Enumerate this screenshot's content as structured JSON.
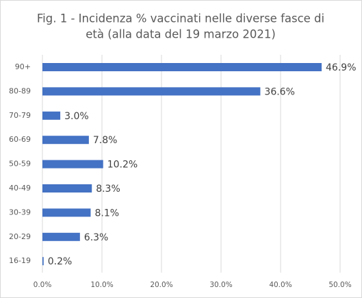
{
  "chart_data": {
    "type": "bar",
    "orientation": "horizontal",
    "title": [
      "Fig. 1 - Incidenza % vaccinati nelle diverse fasce di",
      "età (alla data del 19 marzo 2021)"
    ],
    "categories": [
      "90+",
      "80-89",
      "70-79",
      "60-69",
      "50-59",
      "40-49",
      "30-39",
      "20-29",
      "16-19"
    ],
    "values": [
      46.9,
      36.6,
      3.0,
      7.8,
      10.2,
      8.3,
      8.1,
      6.3,
      0.2
    ],
    "value_labels": [
      "46.9%",
      "36.6%",
      "3.0%",
      "7.8%",
      "10.2%",
      "8.3%",
      "8.1%",
      "6.3%",
      "0.2%"
    ],
    "color": "#4472c4",
    "xlim": [
      0,
      50
    ],
    "xticks": [
      {
        "value": 0,
        "label": "0.0%"
      },
      {
        "value": 10,
        "label": "10.0%"
      },
      {
        "value": 20,
        "label": "20.0%"
      },
      {
        "value": 30,
        "label": "30.0%"
      },
      {
        "value": 40,
        "label": "40.0%"
      },
      {
        "value": 50,
        "label": "50.0%"
      }
    ],
    "grid": true
  }
}
